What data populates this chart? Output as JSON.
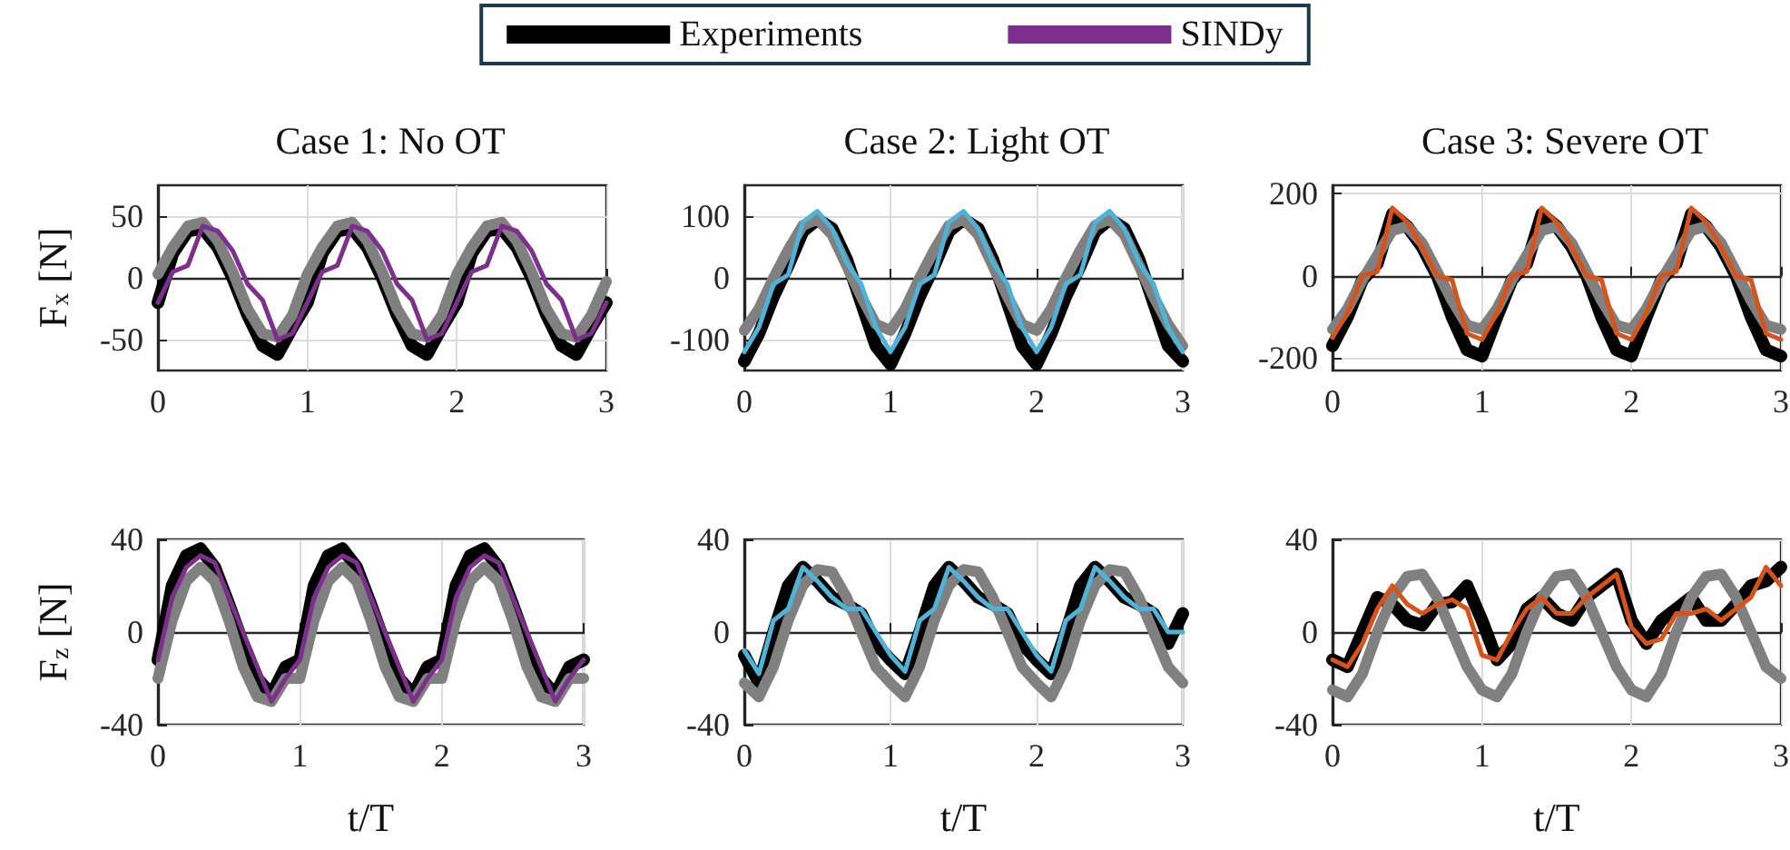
{
  "chart_data": [
    {
      "type": "line",
      "title": "Case 1: No OT",
      "ylabel": "F$_{x}$ [N]",
      "legend": "top",
      "grid": true,
      "xlim": [
        0,
        3
      ],
      "xticks": [
        0,
        1,
        2,
        3
      ],
      "ylim": [
        -75,
        75
      ],
      "yticks": [
        -50,
        0,
        50
      ],
      "x": [
        0,
        0.1,
        0.2,
        0.3,
        0.4,
        0.5,
        0.6,
        0.7,
        0.8,
        0.9,
        1,
        1.1,
        1.2,
        1.3,
        1.4,
        1.5,
        1.6,
        1.7,
        1.8,
        1.9,
        2,
        2.1,
        2.2,
        2.3,
        2.4,
        2.5,
        2.6,
        2.7,
        2.8,
        2.9,
        3
      ],
      "series": [
        {
          "name": "Experiments",
          "color": "#000000",
          "values": [
            -20,
            20,
            38,
            40,
            25,
            0,
            -30,
            -55,
            -62,
            -40,
            -20,
            20,
            38,
            40,
            25,
            0,
            -30,
            -55,
            -62,
            -40,
            -20,
            20,
            38,
            40,
            25,
            0,
            -30,
            -55,
            -62,
            -40,
            -20
          ]
        },
        {
          "color": "#808080",
          "values": [
            3,
            25,
            42,
            45,
            30,
            5,
            -25,
            -45,
            -48,
            -30,
            3,
            25,
            42,
            45,
            30,
            5,
            -25,
            -45,
            -48,
            -30,
            3,
            25,
            42,
            45,
            30,
            5,
            -25,
            -45,
            -48,
            -30,
            -3
          ]
        },
        {
          "name": "SINDy",
          "color": "#7e2f8e",
          "values": [
            -20,
            5,
            10,
            42,
            38,
            22,
            -5,
            -18,
            -50,
            -45,
            -20,
            5,
            10,
            42,
            38,
            22,
            -5,
            -18,
            -50,
            -45,
            -20,
            5,
            10,
            42,
            38,
            22,
            -5,
            -18,
            -50,
            -45,
            -20
          ]
        }
      ]
    },
    {
      "type": "line",
      "title": "Case 2: Light OT",
      "grid": true,
      "xlim": [
        0,
        3
      ],
      "xticks": [
        0,
        1,
        2,
        3
      ],
      "ylim": [
        -150,
        150
      ],
      "yticks": [
        -100,
        0,
        100
      ],
      "x": [
        0,
        0.1,
        0.2,
        0.3,
        0.4,
        0.5,
        0.6,
        0.7,
        0.8,
        0.9,
        1,
        1.1,
        1.2,
        1.3,
        1.4,
        1.5,
        1.6,
        1.7,
        1.8,
        1.9,
        2,
        2.1,
        2.2,
        2.3,
        2.4,
        2.5,
        2.6,
        2.7,
        2.8,
        2.9,
        3
      ],
      "series": [
        {
          "color": "#000000",
          "values": [
            -135,
            -90,
            -30,
            20,
            75,
            95,
            80,
            30,
            -40,
            -110,
            -140,
            -90,
            -30,
            20,
            75,
            95,
            80,
            30,
            -40,
            -110,
            -140,
            -90,
            -30,
            20,
            75,
            95,
            80,
            30,
            -40,
            -110,
            -135
          ]
        },
        {
          "color": "#808080",
          "values": [
            -85,
            -50,
            0,
            45,
            85,
            95,
            70,
            20,
            -30,
            -75,
            -85,
            -50,
            0,
            45,
            85,
            95,
            70,
            20,
            -30,
            -75,
            -85,
            -50,
            0,
            45,
            85,
            95,
            70,
            20,
            -30,
            -75,
            -110
          ]
        },
        {
          "color": "#4db3d9",
          "values": [
            -120,
            -80,
            -10,
            5,
            90,
            108,
            80,
            25,
            -10,
            -80,
            -120,
            -80,
            -10,
            5,
            90,
            108,
            80,
            25,
            -10,
            -80,
            -120,
            -80,
            -10,
            5,
            90,
            108,
            80,
            25,
            -10,
            -80,
            -120
          ]
        }
      ]
    },
    {
      "type": "line",
      "title": "Case 3: Severe OT",
      "grid": true,
      "xlim": [
        0,
        3
      ],
      "xticks": [
        0,
        1,
        2,
        3
      ],
      "ylim": [
        -230,
        220
      ],
      "yticks": [
        -200,
        0,
        200
      ],
      "x": [
        0,
        0.1,
        0.2,
        0.3,
        0.4,
        0.5,
        0.6,
        0.7,
        0.8,
        0.9,
        1,
        1.1,
        1.2,
        1.3,
        1.4,
        1.5,
        1.6,
        1.7,
        1.8,
        1.9,
        2,
        2.1,
        2.2,
        2.3,
        2.4,
        2.5,
        2.6,
        2.7,
        2.8,
        2.9,
        3
      ],
      "series": [
        {
          "color": "#000000",
          "values": [
            -170,
            -100,
            -10,
            30,
            150,
            120,
            70,
            0,
            -100,
            -180,
            -195,
            -100,
            -10,
            30,
            150,
            120,
            70,
            0,
            -100,
            -180,
            -195,
            -100,
            -10,
            30,
            150,
            120,
            70,
            0,
            -100,
            -180,
            -195
          ]
        },
        {
          "color": "#808080",
          "values": [
            -130,
            -80,
            -10,
            50,
            110,
            120,
            80,
            10,
            -60,
            -120,
            -130,
            -80,
            -10,
            50,
            110,
            120,
            80,
            10,
            -60,
            -120,
            -130,
            -80,
            -10,
            50,
            110,
            120,
            80,
            10,
            -60,
            -120,
            -130
          ]
        },
        {
          "color": "#d95319",
          "values": [
            -150,
            -90,
            0,
            10,
            165,
            130,
            70,
            0,
            -10,
            -140,
            -155,
            -90,
            0,
            10,
            165,
            130,
            70,
            0,
            -10,
            -140,
            -155,
            -90,
            0,
            10,
            165,
            130,
            70,
            0,
            -10,
            -140,
            -155
          ]
        }
      ]
    },
    {
      "type": "line",
      "xlabel": "t/T",
      "ylabel": "F$_{z}$ [N]",
      "grid": true,
      "xlim": [
        0,
        3
      ],
      "xticks": [
        0,
        1,
        2,
        3
      ],
      "ylim": [
        -40,
        40
      ],
      "yticks": [
        -40,
        0,
        40
      ],
      "x": [
        0,
        0.1,
        0.2,
        0.3,
        0.4,
        0.5,
        0.6,
        0.7,
        0.8,
        0.9,
        1,
        1.1,
        1.2,
        1.3,
        1.4,
        1.5,
        1.6,
        1.7,
        1.8,
        1.9,
        2,
        2.1,
        2.2,
        2.3,
        2.4,
        2.5,
        2.6,
        2.7,
        2.8,
        2.9,
        3
      ],
      "series": [
        {
          "color": "#000000",
          "values": [
            -12,
            20,
            33,
            36,
            28,
            12,
            -5,
            -20,
            -27,
            -15,
            -12,
            20,
            33,
            36,
            28,
            12,
            -5,
            -20,
            -27,
            -15,
            -12,
            20,
            33,
            36,
            28,
            12,
            -5,
            -20,
            -27,
            -15,
            -12
          ]
        },
        {
          "color": "#808080",
          "values": [
            -20,
            5,
            22,
            28,
            22,
            5,
            -15,
            -28,
            -30,
            -20,
            -20,
            5,
            22,
            28,
            22,
            5,
            -15,
            -28,
            -30,
            -20,
            -20,
            5,
            22,
            28,
            22,
            5,
            -15,
            -28,
            -30,
            -20,
            -20
          ]
        },
        {
          "color": "#7e2f8e",
          "values": [
            -12,
            15,
            28,
            33,
            30,
            15,
            0,
            -15,
            -30,
            -20,
            -12,
            15,
            28,
            33,
            30,
            15,
            0,
            -15,
            -30,
            -20,
            -12,
            15,
            28,
            33,
            30,
            15,
            0,
            -15,
            -30,
            -20,
            -12
          ]
        }
      ]
    },
    {
      "type": "line",
      "xlabel": "t/T",
      "grid": true,
      "xlim": [
        0,
        3
      ],
      "xticks": [
        0,
        1,
        2,
        3
      ],
      "ylim": [
        -40,
        40
      ],
      "yticks": [
        -40,
        0,
        40
      ],
      "x": [
        0,
        0.1,
        0.2,
        0.3,
        0.4,
        0.5,
        0.6,
        0.7,
        0.8,
        0.9,
        1,
        1.1,
        1.2,
        1.3,
        1.4,
        1.5,
        1.6,
        1.7,
        1.8,
        1.9,
        2,
        2.1,
        2.2,
        2.3,
        2.4,
        2.5,
        2.6,
        2.7,
        2.8,
        2.9,
        3
      ],
      "series": [
        {
          "color": "#000000",
          "values": [
            -10,
            -22,
            0,
            20,
            28,
            22,
            15,
            12,
            8,
            -5,
            -12,
            -18,
            0,
            20,
            28,
            22,
            15,
            12,
            8,
            -5,
            -12,
            -18,
            0,
            20,
            28,
            22,
            15,
            12,
            8,
            -5,
            8
          ]
        },
        {
          "color": "#808080",
          "values": [
            -22,
            -28,
            -15,
            5,
            20,
            27,
            26,
            15,
            0,
            -15,
            -22,
            -28,
            -15,
            5,
            20,
            27,
            26,
            15,
            0,
            -15,
            -22,
            -28,
            -15,
            5,
            20,
            27,
            26,
            15,
            0,
            -15,
            -22
          ]
        },
        {
          "color": "#4db3d9",
          "values": [
            -8,
            -18,
            5,
            10,
            28,
            22,
            15,
            10,
            10,
            0,
            -10,
            -17,
            5,
            10,
            28,
            22,
            15,
            10,
            10,
            0,
            -10,
            -17,
            5,
            10,
            28,
            22,
            15,
            10,
            10,
            0,
            0
          ]
        }
      ]
    },
    {
      "type": "line",
      "xlabel": "t/T",
      "grid": true,
      "xlim": [
        0,
        3
      ],
      "xticks": [
        0,
        1,
        2,
        3
      ],
      "ylim": [
        -40,
        40
      ],
      "yticks": [
        -40,
        0,
        40
      ],
      "x": [
        0,
        0.1,
        0.2,
        0.3,
        0.4,
        0.5,
        0.6,
        0.7,
        0.8,
        0.9,
        1,
        1.1,
        1.2,
        1.3,
        1.4,
        1.5,
        1.6,
        1.7,
        1.8,
        1.9,
        2,
        2.1,
        2.2,
        2.3,
        2.4,
        2.5,
        2.6,
        2.7,
        2.8,
        2.9,
        3
      ],
      "series": [
        {
          "color": "#000000",
          "values": [
            -12,
            -15,
            0,
            15,
            12,
            5,
            3,
            12,
            13,
            20,
            5,
            -12,
            -5,
            10,
            15,
            8,
            5,
            15,
            20,
            25,
            5,
            -5,
            5,
            10,
            15,
            5,
            5,
            12,
            20,
            22,
            28
          ]
        },
        {
          "color": "#808080",
          "values": [
            -25,
            -28,
            -18,
            0,
            15,
            24,
            25,
            15,
            0,
            -15,
            -25,
            -28,
            -18,
            0,
            15,
            24,
            25,
            15,
            0,
            -15,
            -25,
            -28,
            -18,
            0,
            15,
            24,
            25,
            15,
            0,
            -15,
            -20
          ]
        },
        {
          "color": "#d95319",
          "values": [
            -12,
            -15,
            -5,
            10,
            20,
            12,
            8,
            12,
            14,
            10,
            -10,
            -12,
            0,
            10,
            15,
            8,
            8,
            15,
            20,
            25,
            2,
            -5,
            -3,
            8,
            8,
            10,
            5,
            10,
            15,
            28,
            20
          ]
        }
      ]
    }
  ]
}
